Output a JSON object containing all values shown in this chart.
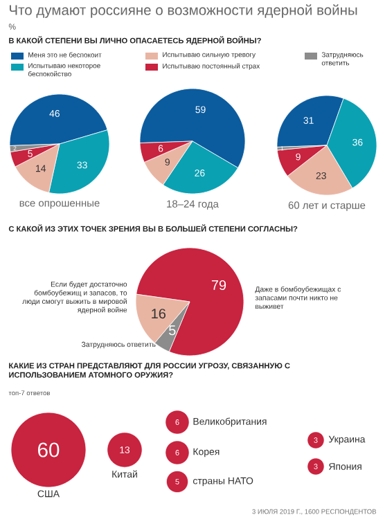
{
  "chart_data": [
    {
      "type": "other",
      "title": "Что думают россияне о возможности ядерной войны",
      "subtitle": "%"
    },
    {
      "type": "pie",
      "title": "В КАКОЙ СТЕПЕНИ ВЫ ЛИЧНО ОПАСАЕТЕСЬ ЯДЕРНОЙ ВОЙНЫ?",
      "legend": "top",
      "categories": [
        "Меня это не беспокоит",
        "Испытываю некоторое беспокойство",
        "Испытываю сильную тревогу",
        "Испытываю постоянный страх",
        "Затрудняюсь ответить"
      ],
      "colors": [
        "#0b5c9e",
        "#0aa1b3",
        "#e9b5a3",
        "#c8233f",
        "#8c8c8c"
      ],
      "series": [
        {
          "name": "все опрошенные",
          "values": [
            46,
            33,
            14,
            5,
            2
          ],
          "value_labels": [
            "46",
            "33",
            "14",
            "5",
            "2"
          ]
        },
        {
          "name": "18–24 года",
          "values": [
            59,
            26,
            9,
            6,
            0
          ],
          "value_labels": [
            "59",
            "26",
            "9",
            "6",
            null
          ]
        },
        {
          "name": "60 лет и старше",
          "values": [
            31,
            36,
            23,
            9,
            1
          ],
          "value_labels": [
            "31",
            "36",
            "23",
            "9",
            "1"
          ]
        }
      ]
    },
    {
      "type": "pie",
      "title": "С КАКОЙ ИЗ ЭТИХ ТОЧЕК ЗРЕНИЯ ВЫ В БОЛЬШЕЙ СТЕПЕНИ СОГЛАСНЫ?",
      "categories": [
        "Даже в бомбоубежищах с запасами почти никто не выживет",
        "Затрудняюсь ответить",
        "Если будет достаточно бомбоубежищ и запасов, то люди смогут выжить в мировой ядерной войне"
      ],
      "colors": [
        "#c8233f",
        "#8c8c8c",
        "#e9b5a3"
      ],
      "values": [
        79,
        5,
        16
      ],
      "data_labels": true
    },
    {
      "type": "other",
      "title": "КАКИЕ ИЗ СТРАН ПРЕДСТАВЛЯЮТ ДЛЯ РОССИИ УГРОЗУ, СВЯЗАННУЮ С ИСПОЛЬЗОВАНИЕМ АТОМНОГО ОРУЖИЯ?",
      "subtitle": "топ-7 ответов",
      "categories": [
        "США",
        "Китай",
        "Великобритания",
        "Корея",
        "страны НАТО",
        "Украина",
        "Япония"
      ],
      "values": [
        60,
        13,
        6,
        6,
        5,
        3,
        3
      ],
      "color": "#c8233f",
      "data_labels": true,
      "annotations": [
        "3 ИЮЛЯ 2019 Г., 1600 РЕСПОНДЕНТОВ"
      ]
    }
  ]
}
